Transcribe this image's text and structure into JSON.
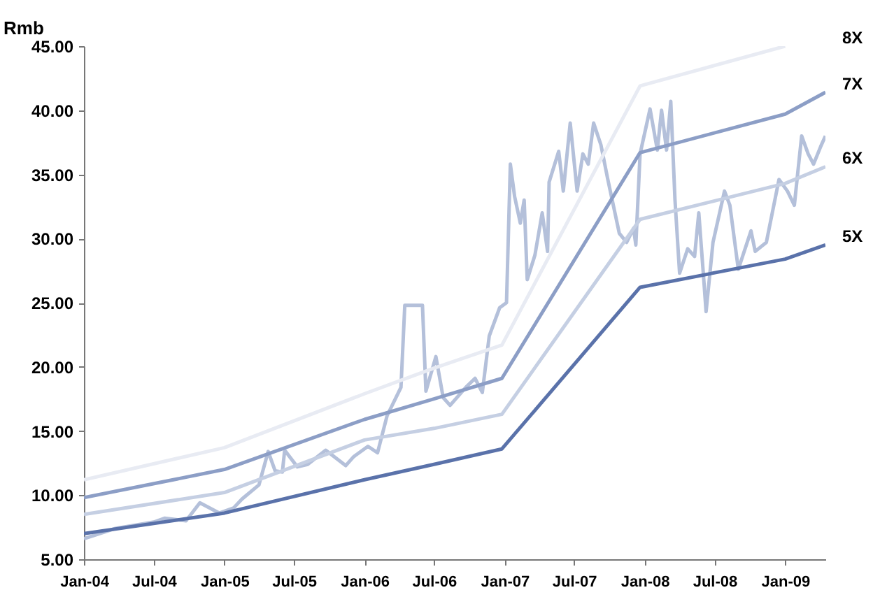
{
  "chart_data": {
    "type": "line",
    "ylabel": "Rmb",
    "xlim": [
      "2004-01-01",
      "2009-04-16"
    ],
    "ylim": [
      5,
      45
    ],
    "xticks": [
      {
        "value": "2004-01-01",
        "label": "Jan-04"
      },
      {
        "value": "2004-07-01",
        "label": "Jul-04"
      },
      {
        "value": "2005-01-01",
        "label": "Jan-05"
      },
      {
        "value": "2005-07-01",
        "label": "Jul-05"
      },
      {
        "value": "2006-01-01",
        "label": "Jan-06"
      },
      {
        "value": "2006-07-01",
        "label": "Jul-06"
      },
      {
        "value": "2007-01-01",
        "label": "Jan-07"
      },
      {
        "value": "2007-07-01",
        "label": "Jul-07"
      },
      {
        "value": "2008-01-01",
        "label": "Jan-08"
      },
      {
        "value": "2008-07-01",
        "label": "Jul-08"
      },
      {
        "value": "2009-01-01",
        "label": "Jan-09"
      }
    ],
    "yticks": [
      {
        "value": 5,
        "label": "5.00"
      },
      {
        "value": 10,
        "label": "10.00"
      },
      {
        "value": 15,
        "label": "15.00"
      },
      {
        "value": 20,
        "label": "20.00"
      },
      {
        "value": 25,
        "label": "25.00"
      },
      {
        "value": 30,
        "label": "30.00"
      },
      {
        "value": 35,
        "label": "35.00"
      },
      {
        "value": 40,
        "label": "40.00"
      },
      {
        "value": 45,
        "label": "45.00"
      }
    ],
    "grid": false,
    "line_style": "solid",
    "marker": "none",
    "series": [
      {
        "color": "#b4c0da",
        "x": [
          "2004-01-01",
          "2004-03-23",
          "2004-07-01",
          "2004-07-29",
          "2004-09-23",
          "2004-10-29",
          "2004-12-19",
          "2005-01-25",
          "2005-02-16",
          "2005-04-01",
          "2005-04-25",
          "2005-05-13",
          "2005-06-01",
          "2005-06-07",
          "2005-07-10",
          "2005-08-06",
          "2005-09-22",
          "2005-11-13",
          "2005-12-04",
          "2006-01-10",
          "2006-02-04",
          "2006-03-01",
          "2006-04-06",
          "2006-04-16",
          "2006-06-01",
          "2006-06-10",
          "2006-07-06",
          "2006-07-25",
          "2006-08-12",
          "2006-09-22",
          "2006-10-16",
          "2006-11-04",
          "2006-11-22",
          "2006-12-19",
          "2007-01-06",
          "2007-01-16",
          "2007-01-27",
          "2007-02-11",
          "2007-02-21",
          "2007-03-01",
          "2007-03-21",
          "2007-04-09",
          "2007-04-23",
          "2007-04-27",
          "2007-05-22",
          "2007-06-03",
          "2007-06-21",
          "2007-07-09",
          "2007-07-24",
          "2007-08-07",
          "2007-08-21",
          "2007-09-09",
          "2007-09-27",
          "2007-10-27",
          "2007-11-15",
          "2007-12-03",
          "2007-12-09",
          "2007-12-20",
          "2008-01-15",
          "2008-02-03",
          "2008-02-14",
          "2008-02-27",
          "2008-03-09",
          "2008-03-20",
          "2008-04-01",
          "2008-04-22",
          "2008-05-10",
          "2008-05-21",
          "2008-06-03",
          "2008-06-09",
          "2008-06-27",
          "2008-07-27",
          "2008-08-10",
          "2008-09-01",
          "2008-10-04",
          "2008-10-15",
          "2008-11-13",
          "2008-12-16",
          "2009-01-07",
          "2009-01-25",
          "2009-02-13",
          "2009-03-02",
          "2009-03-16",
          "2009-04-04",
          "2009-04-16"
        ],
        "values": [
          6.6,
          7.4,
          7.9,
          8.2,
          8.0,
          9.4,
          8.6,
          9.0,
          9.7,
          10.8,
          13.4,
          11.9,
          11.8,
          13.5,
          12.2,
          12.4,
          13.5,
          12.3,
          13.0,
          13.8,
          13.3,
          16.2,
          18.4,
          24.8,
          24.8,
          18.1,
          20.8,
          17.6,
          17.0,
          18.4,
          19.1,
          18.0,
          22.4,
          24.6,
          25.0,
          35.8,
          33.3,
          31.2,
          33.0,
          26.8,
          28.7,
          32.0,
          29.0,
          34.4,
          36.8,
          33.7,
          39.0,
          33.7,
          36.6,
          35.8,
          39.0,
          37.3,
          34.6,
          30.4,
          29.7,
          30.8,
          29.5,
          36.6,
          40.1,
          36.9,
          40.0,
          36.9,
          40.7,
          33.0,
          27.3,
          29.2,
          28.6,
          32.0,
          26.8,
          24.3,
          29.7,
          33.7,
          32.6,
          27.6,
          30.6,
          29.0,
          29.7,
          34.6,
          33.7,
          32.6,
          38.0,
          36.6,
          35.8,
          37.2,
          38.0
        ]
      },
      {
        "name": "8X",
        "color": "#e8ebf3",
        "x": [
          "2004-01-01",
          "2005-01-01",
          "2006-01-01",
          "2006-07-01",
          "2006-12-25",
          "2007-12-20",
          "2009-01-01"
        ],
        "values": [
          11.2,
          13.7,
          17.9,
          19.9,
          21.7,
          41.9,
          45.0
        ]
      },
      {
        "name": "7X",
        "color": "#8c9ec6",
        "x": [
          "2004-01-01",
          "2005-01-01",
          "2006-01-01",
          "2006-07-01",
          "2006-12-25",
          "2007-12-20",
          "2009-01-01",
          "2009-04-16"
        ],
        "values": [
          9.8,
          12.0,
          15.9,
          17.5,
          19.1,
          36.7,
          39.7,
          41.4
        ]
      },
      {
        "name": "6X",
        "color": "#c5cfe3",
        "x": [
          "2004-01-01",
          "2005-01-01",
          "2006-01-01",
          "2006-07-01",
          "2006-12-25",
          "2007-12-20",
          "2009-01-01",
          "2009-04-16"
        ],
        "values": [
          8.5,
          10.2,
          14.3,
          15.2,
          16.3,
          31.5,
          34.3,
          35.6
        ]
      },
      {
        "name": "5X",
        "color": "#5a72aa",
        "x": [
          "2004-01-01",
          "2005-01-01",
          "2006-01-01",
          "2006-07-01",
          "2006-12-25",
          "2007-12-20",
          "2009-01-01",
          "2009-04-16"
        ],
        "values": [
          7.0,
          8.6,
          11.2,
          12.4,
          13.6,
          26.2,
          28.4,
          29.5
        ]
      }
    ]
  }
}
